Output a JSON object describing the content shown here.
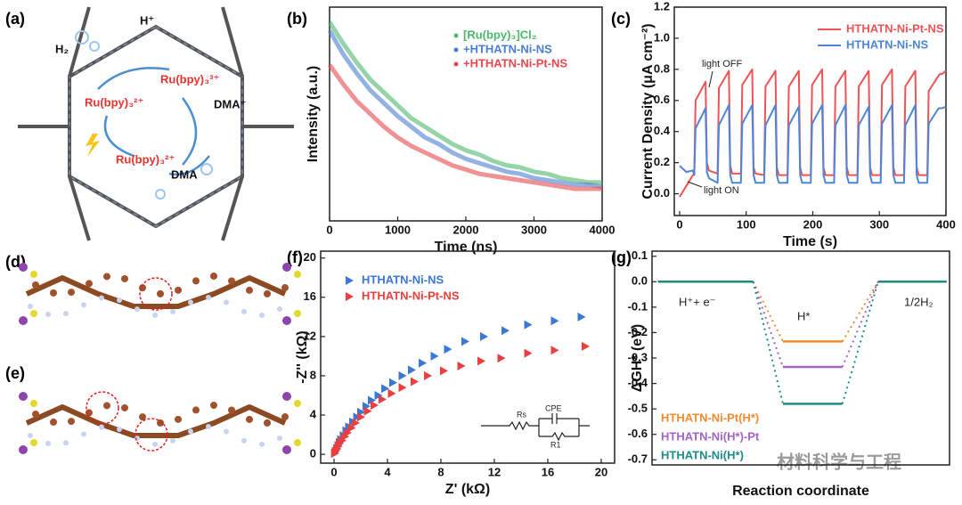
{
  "panel_labels": [
    "(a)",
    "(b)",
    "(c)",
    "(d)",
    "(e)",
    "(f)",
    "(g)"
  ],
  "scheme": {
    "labels": [
      "H⁺",
      "H₂",
      "Ru(bpy)₃³⁺",
      "Ru(bpy)₃²⁺",
      "DMA⁺",
      "Ru(bpy)₃²⁺",
      "DMA"
    ]
  },
  "watermark": "材料科学与工程",
  "chart_data": [
    {
      "type": "line",
      "xlabel": "Time (ns)",
      "ylabel": "Intensity (a.u.)",
      "x": [
        0,
        200,
        400,
        600,
        800,
        1000,
        1200,
        1400,
        1600,
        1800,
        2000,
        2200,
        2400,
        2600,
        2800,
        3000,
        3200,
        3400,
        3600,
        3800,
        4000
      ],
      "xlim": [
        0,
        4000
      ],
      "ylim": [
        0,
        1
      ],
      "xticks": [
        0,
        1000,
        2000,
        3000,
        4000
      ],
      "series": [
        {
          "name": "[Ru(bpy)₃]Cl₂",
          "color": "#4cb86a",
          "values": [
            0.93,
            0.83,
            0.74,
            0.66,
            0.6,
            0.54,
            0.48,
            0.44,
            0.4,
            0.36,
            0.33,
            0.31,
            0.28,
            0.26,
            0.25,
            0.23,
            0.22,
            0.2,
            0.19,
            0.18,
            0.18
          ]
        },
        {
          "name": "+HTHATN-Ni-NS",
          "color": "#4a7fd0",
          "values": [
            0.89,
            0.78,
            0.69,
            0.61,
            0.55,
            0.49,
            0.44,
            0.39,
            0.36,
            0.32,
            0.29,
            0.27,
            0.25,
            0.23,
            0.22,
            0.2,
            0.19,
            0.18,
            0.17,
            0.17,
            0.16
          ]
        },
        {
          "name": "+HTHATN-Ni-Pt-NS",
          "color": "#e8474b",
          "values": [
            0.73,
            0.64,
            0.56,
            0.5,
            0.44,
            0.39,
            0.35,
            0.32,
            0.29,
            0.26,
            0.24,
            0.22,
            0.21,
            0.2,
            0.19,
            0.18,
            0.17,
            0.16,
            0.15,
            0.15,
            0.15
          ]
        }
      ]
    },
    {
      "type": "line",
      "xlabel": "Time (s)",
      "ylabel": "Current Density (μA cm⁻²)",
      "x": [
        0,
        10,
        20,
        22,
        24,
        39,
        41,
        44,
        57,
        59,
        74,
        76,
        79,
        92,
        94,
        109,
        111,
        114,
        127,
        129,
        144,
        146,
        149,
        162,
        164,
        179,
        181,
        184,
        197,
        199,
        214,
        216,
        219,
        232,
        234,
        249,
        251,
        254,
        267,
        269,
        284,
        286,
        289,
        302,
        304,
        319,
        321,
        324,
        337,
        339,
        354,
        356,
        359,
        372,
        374,
        389,
        391,
        394,
        400
      ],
      "xlim": [
        -8,
        400
      ],
      "ylim": [
        -0.14,
        1.2
      ],
      "xticks": [
        0,
        100,
        200,
        300,
        400
      ],
      "yticks": [
        {
          "value": 0,
          "label": "0.0"
        },
        0.2,
        0.4,
        0.6,
        0.8,
        {
          "value": 1,
          "label": "1.0"
        },
        1.2
      ],
      "annotations": [
        "light OFF",
        "light ON"
      ],
      "series": [
        {
          "name": "HTHATN-Ni-Pt-NS",
          "color": "#ee5356",
          "values": [
            -0.02,
            0.05,
            0.12,
            0.13,
            0.6,
            0.72,
            0.2,
            0.15,
            0.13,
            0.68,
            0.79,
            0.18,
            0.13,
            0.13,
            0.7,
            0.8,
            0.17,
            0.13,
            0.12,
            0.69,
            0.79,
            0.17,
            0.12,
            0.12,
            0.69,
            0.79,
            0.17,
            0.12,
            0.12,
            0.7,
            0.8,
            0.17,
            0.12,
            0.12,
            0.69,
            0.79,
            0.17,
            0.12,
            0.12,
            0.69,
            0.79,
            0.17,
            0.12,
            0.12,
            0.7,
            0.8,
            0.17,
            0.12,
            0.12,
            0.69,
            0.79,
            0.17,
            0.12,
            0.12,
            0.66,
            0.76,
            0.77,
            0.77,
            0.79
          ]
        },
        {
          "name": "HTHATN-Ni-NS",
          "color": "#4d86d6",
          "values": [
            0.18,
            0.14,
            0.15,
            0.12,
            0.42,
            0.55,
            0.14,
            0.1,
            0.07,
            0.44,
            0.57,
            0.12,
            0.07,
            0.07,
            0.45,
            0.57,
            0.12,
            0.07,
            0.07,
            0.44,
            0.57,
            0.12,
            0.07,
            0.07,
            0.44,
            0.56,
            0.12,
            0.07,
            0.07,
            0.45,
            0.57,
            0.12,
            0.07,
            0.07,
            0.44,
            0.57,
            0.12,
            0.07,
            0.07,
            0.44,
            0.56,
            0.12,
            0.07,
            0.07,
            0.45,
            0.57,
            0.12,
            0.07,
            0.07,
            0.44,
            0.57,
            0.12,
            0.07,
            0.07,
            0.45,
            0.55,
            0.55,
            0.55,
            0.56
          ]
        }
      ]
    },
    {
      "type": "scatter",
      "xlabel": "Z' (kΩ)",
      "ylabel": "-Z'' (kΩ)",
      "xlim": [
        -1,
        21
      ],
      "ylim": [
        -0.9,
        20.7
      ],
      "xticks": [
        0,
        4,
        8,
        12,
        16,
        20
      ],
      "yticks": [
        0,
        4,
        8,
        12,
        16,
        20
      ],
      "inset_labels": [
        "Rs",
        "CPE",
        "R1"
      ],
      "series": [
        {
          "name": "HTHATN-Ni-NS",
          "color": "#3a78d4",
          "x": [
            0.05,
            0.1,
            0.2,
            0.3,
            0.4,
            0.5,
            0.7,
            0.9,
            1.1,
            1.4,
            1.7,
            2.0,
            2.4,
            2.8,
            3.3,
            3.8,
            4.4,
            5.1,
            5.8,
            6.6,
            7.5,
            8.5,
            9.8,
            11.2,
            12.8,
            14.5,
            16.5,
            18.5
          ],
          "values": [
            0.1,
            0.3,
            0.6,
            0.9,
            1.2,
            1.5,
            1.9,
            2.4,
            2.8,
            3.3,
            3.8,
            4.3,
            4.9,
            5.5,
            6.0,
            6.7,
            7.3,
            8.0,
            8.6,
            9.3,
            10.0,
            10.7,
            11.5,
            12.0,
            12.6,
            13.2,
            13.6,
            14.0
          ]
        },
        {
          "name": "HTHATN-Ni-Pt-NS",
          "color": "#e8403f",
          "x": [
            0.05,
            0.1,
            0.2,
            0.3,
            0.4,
            0.6,
            0.8,
            1.0,
            1.3,
            1.6,
            2.0,
            2.5,
            3.0,
            3.6,
            4.3,
            5.1,
            6.0,
            7.0,
            8.2,
            9.5,
            11.0,
            12.5,
            14.5,
            16.5,
            18.8
          ],
          "values": [
            0.1,
            0.3,
            0.5,
            0.8,
            1.1,
            1.4,
            1.8,
            2.2,
            2.7,
            3.2,
            3.8,
            4.4,
            5.0,
            5.6,
            6.2,
            6.8,
            7.4,
            8.0,
            8.5,
            9.0,
            9.5,
            9.8,
            10.3,
            10.6,
            11.0
          ]
        }
      ]
    },
    {
      "type": "energy",
      "xlabel": "Reaction coordinate",
      "ylabel": "ΔGH* (eV)",
      "ylim": [
        -0.72,
        0.12
      ],
      "yticks": [
        0.1,
        {
          "value": 0,
          "label": "0.0"
        },
        -0.1,
        -0.2,
        -0.3,
        -0.4,
        -0.5,
        -0.6,
        -0.7
      ],
      "categories": [
        null,
        null,
        null
      ],
      "annotations": [
        "H⁺+ e⁻",
        "H*",
        "1/2H₂"
      ],
      "series": [
        {
          "name": "HTHATN-Ni-Pt(H*)",
          "color": "#f28a30",
          "values": [
            0,
            -0.235,
            0
          ]
        },
        {
          "name": "HTHATN-Ni(H*)-Pt",
          "color": "#a463c8",
          "values": [
            0,
            -0.335,
            0
          ]
        },
        {
          "name": "HTHATN-Ni(H*)",
          "color": "#1e8c86",
          "values": [
            0,
            -0.48,
            0
          ]
        }
      ]
    }
  ]
}
